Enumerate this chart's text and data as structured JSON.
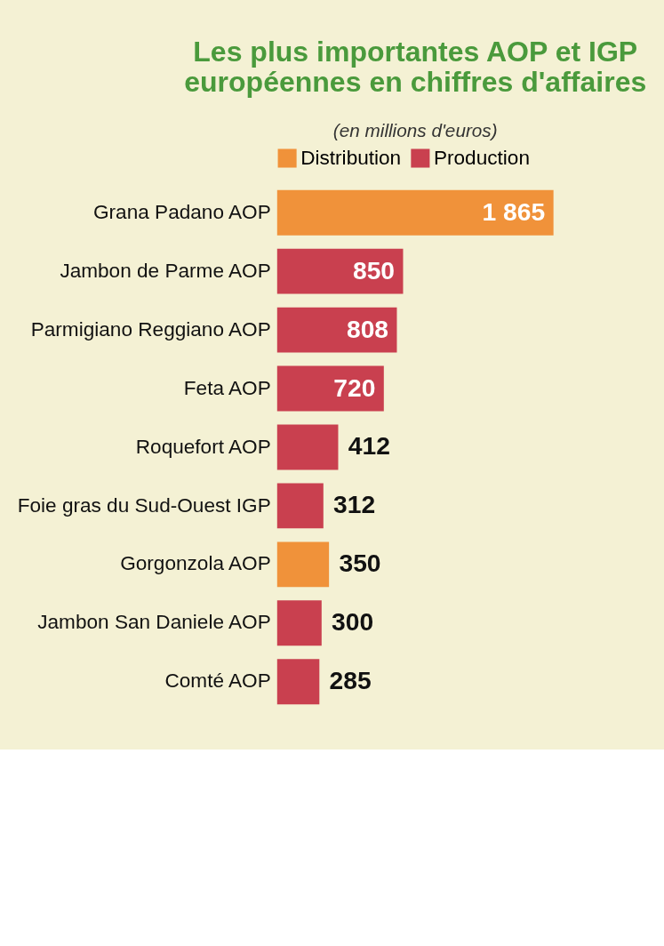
{
  "chart_data": {
    "type": "bar",
    "orientation": "horizontal",
    "title": [
      "Les plus importantes AOP et IGP",
      "européennes en chiffres d'affaires"
    ],
    "subtitle": "(en millions d'euros)",
    "categories": [
      "Grana Padano AOP",
      "Jambon de Parme AOP",
      "Parmigiano Reggiano AOP",
      "Feta AOP",
      "Roquefort AOP",
      "Foie gras du Sud-Ouest IGP",
      "Gorgonzola AOP",
      "Jambon San Daniele AOP",
      "Comté AOP"
    ],
    "series": [
      {
        "name": "Distribution",
        "color": "#f0923a",
        "values": [
          1865,
          null,
          null,
          null,
          null,
          null,
          350,
          null,
          null
        ],
        "value_labels": [
          "1 865",
          null,
          null,
          null,
          null,
          null,
          "350",
          null,
          null
        ]
      },
      {
        "name": "Production",
        "color": "#c9404f",
        "values": [
          null,
          850,
          808,
          720,
          412,
          312,
          null,
          300,
          285
        ],
        "value_labels": [
          null,
          "850",
          "808",
          "720",
          "412",
          "312",
          null,
          "300",
          "285"
        ]
      }
    ],
    "legend": "top",
    "grid": false
  }
}
